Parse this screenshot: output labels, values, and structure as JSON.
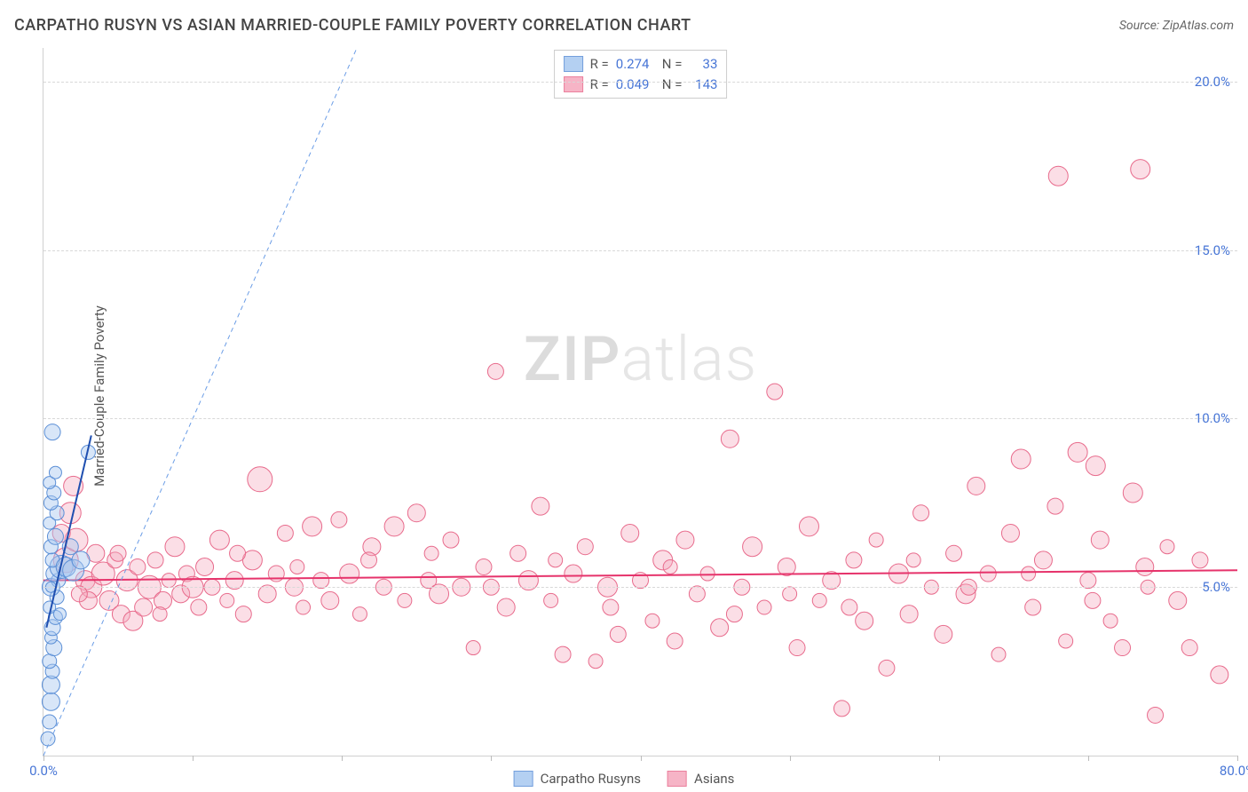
{
  "title": "CARPATHO RUSYN VS ASIAN MARRIED-COUPLE FAMILY POVERTY CORRELATION CHART",
  "source_label": "Source: ",
  "source_value": "ZipAtlas.com",
  "ylabel": "Married-Couple Family Poverty",
  "watermark_bold": "ZIP",
  "watermark_light": "atlas",
  "chart": {
    "type": "scatter",
    "background_color": "#ffffff",
    "grid_color": "#d8d8d8",
    "axis_text_color": "#4876d6",
    "xlim": [
      0,
      80
    ],
    "ylim": [
      0,
      21
    ],
    "xtick_positions": [
      0,
      10,
      20,
      30,
      40,
      50,
      60,
      70,
      80
    ],
    "xtick_labels": {
      "0": "0.0%",
      "80": "80.0%"
    },
    "yticks": [
      5,
      10,
      15,
      20
    ],
    "ytick_labels": [
      "5.0%",
      "10.0%",
      "15.0%",
      "20.0%"
    ],
    "label_fontsize": 15
  },
  "series": [
    {
      "name": "Carpatho Rusyns",
      "fill": "#a8c8f0",
      "stroke": "#5b8fd6",
      "fill_opacity": 0.45,
      "marker_radius_range": [
        6,
        14
      ],
      "trend": {
        "x1": 0.2,
        "y1": 3.8,
        "x2": 3.2,
        "y2": 9.5,
        "color": "#1f4fb0",
        "width": 2,
        "dash": "none"
      },
      "identity_line": {
        "x1": 0,
        "y1": 0,
        "x2": 21,
        "y2": 21,
        "color": "#6b9de6",
        "width": 1,
        "dash": "5,4"
      },
      "R": "0.274",
      "N": "33",
      "points": [
        {
          "x": 0.3,
          "y": 0.5,
          "r": 8
        },
        {
          "x": 0.4,
          "y": 1.0,
          "r": 8
        },
        {
          "x": 0.5,
          "y": 1.6,
          "r": 10
        },
        {
          "x": 0.5,
          "y": 2.1,
          "r": 10
        },
        {
          "x": 0.6,
          "y": 2.5,
          "r": 8
        },
        {
          "x": 0.4,
          "y": 2.8,
          "r": 8
        },
        {
          "x": 0.7,
          "y": 3.2,
          "r": 9
        },
        {
          "x": 0.5,
          "y": 3.5,
          "r": 7
        },
        {
          "x": 0.6,
          "y": 3.8,
          "r": 9
        },
        {
          "x": 0.8,
          "y": 4.1,
          "r": 8
        },
        {
          "x": 0.4,
          "y": 4.4,
          "r": 7
        },
        {
          "x": 0.9,
          "y": 4.7,
          "r": 8
        },
        {
          "x": 0.5,
          "y": 5.0,
          "r": 10
        },
        {
          "x": 1.0,
          "y": 5.2,
          "r": 8
        },
        {
          "x": 0.7,
          "y": 5.4,
          "r": 9
        },
        {
          "x": 1.2,
          "y": 5.6,
          "r": 13
        },
        {
          "x": 0.6,
          "y": 5.8,
          "r": 8
        },
        {
          "x": 1.5,
          "y": 5.6,
          "r": 11
        },
        {
          "x": 2.0,
          "y": 5.5,
          "r": 12
        },
        {
          "x": 2.5,
          "y": 5.8,
          "r": 10
        },
        {
          "x": 0.5,
          "y": 6.2,
          "r": 8
        },
        {
          "x": 0.8,
          "y": 6.5,
          "r": 9
        },
        {
          "x": 0.4,
          "y": 6.9,
          "r": 7
        },
        {
          "x": 0.9,
          "y": 7.2,
          "r": 8
        },
        {
          "x": 0.5,
          "y": 7.5,
          "r": 8
        },
        {
          "x": 0.7,
          "y": 7.8,
          "r": 8
        },
        {
          "x": 0.4,
          "y": 8.1,
          "r": 7
        },
        {
          "x": 0.8,
          "y": 8.4,
          "r": 7
        },
        {
          "x": 3.0,
          "y": 9.0,
          "r": 8
        },
        {
          "x": 0.6,
          "y": 9.6,
          "r": 9
        },
        {
          "x": 0.5,
          "y": 5.0,
          "r": 6
        },
        {
          "x": 1.1,
          "y": 4.2,
          "r": 7
        },
        {
          "x": 1.8,
          "y": 6.2,
          "r": 9
        }
      ]
    },
    {
      "name": "Asians",
      "fill": "#f5a8bd",
      "stroke": "#e86b8c",
      "fill_opacity": 0.38,
      "marker_radius_range": [
        7,
        16
      ],
      "trend": {
        "x1": 0,
        "y1": 5.2,
        "x2": 80,
        "y2": 5.5,
        "color": "#e6336b",
        "width": 2,
        "dash": "none"
      },
      "R": "0.049",
      "N": "143",
      "points": [
        {
          "x": 1.5,
          "y": 5.8,
          "r": 14
        },
        {
          "x": 1.8,
          "y": 7.2,
          "r": 12
        },
        {
          "x": 2.2,
          "y": 6.4,
          "r": 13
        },
        {
          "x": 2.8,
          "y": 5.2,
          "r": 11
        },
        {
          "x": 3.2,
          "y": 5.0,
          "r": 12
        },
        {
          "x": 3.5,
          "y": 6.0,
          "r": 10
        },
        {
          "x": 4.0,
          "y": 5.4,
          "r": 13
        },
        {
          "x": 4.4,
          "y": 4.6,
          "r": 11
        },
        {
          "x": 4.8,
          "y": 5.8,
          "r": 9
        },
        {
          "x": 5.2,
          "y": 4.2,
          "r": 10
        },
        {
          "x": 5.6,
          "y": 5.2,
          "r": 12
        },
        {
          "x": 6.0,
          "y": 4.0,
          "r": 11
        },
        {
          "x": 6.3,
          "y": 5.6,
          "r": 9
        },
        {
          "x": 6.7,
          "y": 4.4,
          "r": 10
        },
        {
          "x": 7.1,
          "y": 5.0,
          "r": 13
        },
        {
          "x": 7.5,
          "y": 5.8,
          "r": 9
        },
        {
          "x": 8.0,
          "y": 4.6,
          "r": 10
        },
        {
          "x": 8.4,
          "y": 5.2,
          "r": 8
        },
        {
          "x": 8.8,
          "y": 6.2,
          "r": 11
        },
        {
          "x": 9.2,
          "y": 4.8,
          "r": 10
        },
        {
          "x": 9.6,
          "y": 5.4,
          "r": 9
        },
        {
          "x": 10.0,
          "y": 5.0,
          "r": 12
        },
        {
          "x": 10.4,
          "y": 4.4,
          "r": 9
        },
        {
          "x": 10.8,
          "y": 5.6,
          "r": 10
        },
        {
          "x": 11.3,
          "y": 5.0,
          "r": 9
        },
        {
          "x": 11.8,
          "y": 6.4,
          "r": 11
        },
        {
          "x": 12.3,
          "y": 4.6,
          "r": 8
        },
        {
          "x": 12.8,
          "y": 5.2,
          "r": 10
        },
        {
          "x": 13.4,
          "y": 4.2,
          "r": 9
        },
        {
          "x": 14.0,
          "y": 5.8,
          "r": 11
        },
        {
          "x": 14.5,
          "y": 8.2,
          "r": 14
        },
        {
          "x": 15.0,
          "y": 4.8,
          "r": 10
        },
        {
          "x": 15.6,
          "y": 5.4,
          "r": 9
        },
        {
          "x": 16.2,
          "y": 6.6,
          "r": 9
        },
        {
          "x": 16.8,
          "y": 5.0,
          "r": 10
        },
        {
          "x": 17.4,
          "y": 4.4,
          "r": 8
        },
        {
          "x": 18.0,
          "y": 6.8,
          "r": 11
        },
        {
          "x": 18.6,
          "y": 5.2,
          "r": 9
        },
        {
          "x": 19.2,
          "y": 4.6,
          "r": 10
        },
        {
          "x": 19.8,
          "y": 7.0,
          "r": 9
        },
        {
          "x": 20.5,
          "y": 5.4,
          "r": 11
        },
        {
          "x": 21.2,
          "y": 4.2,
          "r": 8
        },
        {
          "x": 22.0,
          "y": 6.2,
          "r": 10
        },
        {
          "x": 22.8,
          "y": 5.0,
          "r": 9
        },
        {
          "x": 23.5,
          "y": 6.8,
          "r": 11
        },
        {
          "x": 24.2,
          "y": 4.6,
          "r": 8
        },
        {
          "x": 25.0,
          "y": 7.2,
          "r": 10
        },
        {
          "x": 25.8,
          "y": 5.2,
          "r": 9
        },
        {
          "x": 26.5,
          "y": 4.8,
          "r": 11
        },
        {
          "x": 27.3,
          "y": 6.4,
          "r": 9
        },
        {
          "x": 28.0,
          "y": 5.0,
          "r": 10
        },
        {
          "x": 28.8,
          "y": 3.2,
          "r": 8
        },
        {
          "x": 29.5,
          "y": 5.6,
          "r": 9
        },
        {
          "x": 30.3,
          "y": 11.4,
          "r": 9
        },
        {
          "x": 31.0,
          "y": 4.4,
          "r": 10
        },
        {
          "x": 31.8,
          "y": 6.0,
          "r": 9
        },
        {
          "x": 32.5,
          "y": 5.2,
          "r": 11
        },
        {
          "x": 33.3,
          "y": 7.4,
          "r": 10
        },
        {
          "x": 34.0,
          "y": 4.6,
          "r": 8
        },
        {
          "x": 34.8,
          "y": 3.0,
          "r": 9
        },
        {
          "x": 35.5,
          "y": 5.4,
          "r": 10
        },
        {
          "x": 36.3,
          "y": 6.2,
          "r": 9
        },
        {
          "x": 37.0,
          "y": 2.8,
          "r": 8
        },
        {
          "x": 37.8,
          "y": 5.0,
          "r": 11
        },
        {
          "x": 38.5,
          "y": 3.6,
          "r": 9
        },
        {
          "x": 39.3,
          "y": 6.6,
          "r": 10
        },
        {
          "x": 40.0,
          "y": 5.2,
          "r": 9
        },
        {
          "x": 40.8,
          "y": 4.0,
          "r": 8
        },
        {
          "x": 41.5,
          "y": 5.8,
          "r": 11
        },
        {
          "x": 42.3,
          "y": 3.4,
          "r": 9
        },
        {
          "x": 43.0,
          "y": 6.4,
          "r": 10
        },
        {
          "x": 43.8,
          "y": 4.8,
          "r": 9
        },
        {
          "x": 44.5,
          "y": 5.4,
          "r": 8
        },
        {
          "x": 45.3,
          "y": 3.8,
          "r": 10
        },
        {
          "x": 46.0,
          "y": 9.4,
          "r": 10
        },
        {
          "x": 46.8,
          "y": 5.0,
          "r": 9
        },
        {
          "x": 47.5,
          "y": 6.2,
          "r": 11
        },
        {
          "x": 48.3,
          "y": 4.4,
          "r": 8
        },
        {
          "x": 49.0,
          "y": 10.8,
          "r": 9
        },
        {
          "x": 49.8,
          "y": 5.6,
          "r": 10
        },
        {
          "x": 50.5,
          "y": 3.2,
          "r": 9
        },
        {
          "x": 51.3,
          "y": 6.8,
          "r": 11
        },
        {
          "x": 52.0,
          "y": 4.6,
          "r": 8
        },
        {
          "x": 52.8,
          "y": 5.2,
          "r": 10
        },
        {
          "x": 53.5,
          "y": 1.4,
          "r": 9
        },
        {
          "x": 54.3,
          "y": 5.8,
          "r": 9
        },
        {
          "x": 55.0,
          "y": 4.0,
          "r": 10
        },
        {
          "x": 55.8,
          "y": 6.4,
          "r": 8
        },
        {
          "x": 56.5,
          "y": 2.6,
          "r": 9
        },
        {
          "x": 57.3,
          "y": 5.4,
          "r": 11
        },
        {
          "x": 58.0,
          "y": 4.2,
          "r": 10
        },
        {
          "x": 58.8,
          "y": 7.2,
          "r": 9
        },
        {
          "x": 59.5,
          "y": 5.0,
          "r": 8
        },
        {
          "x": 60.3,
          "y": 3.6,
          "r": 10
        },
        {
          "x": 61.0,
          "y": 6.0,
          "r": 9
        },
        {
          "x": 61.8,
          "y": 4.8,
          "r": 11
        },
        {
          "x": 62.5,
          "y": 8.0,
          "r": 10
        },
        {
          "x": 63.3,
          "y": 5.4,
          "r": 9
        },
        {
          "x": 64.0,
          "y": 3.0,
          "r": 8
        },
        {
          "x": 64.8,
          "y": 6.6,
          "r": 10
        },
        {
          "x": 65.5,
          "y": 8.8,
          "r": 11
        },
        {
          "x": 66.3,
          "y": 4.4,
          "r": 9
        },
        {
          "x": 67.0,
          "y": 5.8,
          "r": 10
        },
        {
          "x": 67.8,
          "y": 7.4,
          "r": 9
        },
        {
          "x": 68.5,
          "y": 3.4,
          "r": 8
        },
        {
          "x": 68.0,
          "y": 17.2,
          "r": 11
        },
        {
          "x": 69.3,
          "y": 9.0,
          "r": 11
        },
        {
          "x": 70.0,
          "y": 5.2,
          "r": 9
        },
        {
          "x": 70.5,
          "y": 8.6,
          "r": 11
        },
        {
          "x": 70.8,
          "y": 6.4,
          "r": 10
        },
        {
          "x": 71.5,
          "y": 4.0,
          "r": 8
        },
        {
          "x": 72.3,
          "y": 3.2,
          "r": 9
        },
        {
          "x": 73.0,
          "y": 7.8,
          "r": 11
        },
        {
          "x": 73.5,
          "y": 17.4,
          "r": 11
        },
        {
          "x": 73.8,
          "y": 5.6,
          "r": 10
        },
        {
          "x": 74.5,
          "y": 1.2,
          "r": 9
        },
        {
          "x": 75.3,
          "y": 6.2,
          "r": 8
        },
        {
          "x": 76.0,
          "y": 4.6,
          "r": 10
        },
        {
          "x": 76.8,
          "y": 3.2,
          "r": 9
        },
        {
          "x": 78.8,
          "y": 2.4,
          "r": 10
        },
        {
          "x": 3.0,
          "y": 4.6,
          "r": 10
        },
        {
          "x": 5.0,
          "y": 6.0,
          "r": 9
        },
        {
          "x": 7.8,
          "y": 4.2,
          "r": 8
        },
        {
          "x": 13.0,
          "y": 6.0,
          "r": 9
        },
        {
          "x": 17.0,
          "y": 5.6,
          "r": 8
        },
        {
          "x": 21.8,
          "y": 5.8,
          "r": 9
        },
        {
          "x": 26.0,
          "y": 6.0,
          "r": 8
        },
        {
          "x": 30.0,
          "y": 5.0,
          "r": 9
        },
        {
          "x": 34.3,
          "y": 5.8,
          "r": 8
        },
        {
          "x": 38.0,
          "y": 4.4,
          "r": 9
        },
        {
          "x": 42.0,
          "y": 5.6,
          "r": 8
        },
        {
          "x": 46.3,
          "y": 4.2,
          "r": 9
        },
        {
          "x": 50.0,
          "y": 4.8,
          "r": 8
        },
        {
          "x": 54.0,
          "y": 4.4,
          "r": 9
        },
        {
          "x": 58.3,
          "y": 5.8,
          "r": 8
        },
        {
          "x": 62.0,
          "y": 5.0,
          "r": 9
        },
        {
          "x": 66.0,
          "y": 5.4,
          "r": 8
        },
        {
          "x": 70.3,
          "y": 4.6,
          "r": 9
        },
        {
          "x": 74.0,
          "y": 5.0,
          "r": 8
        },
        {
          "x": 77.5,
          "y": 5.8,
          "r": 9
        },
        {
          "x": 2.0,
          "y": 8.0,
          "r": 11
        },
        {
          "x": 1.2,
          "y": 6.6,
          "r": 10
        },
        {
          "x": 2.4,
          "y": 4.8,
          "r": 9
        }
      ]
    }
  ],
  "legend": {
    "items": [
      {
        "label": "Carpatho Rusyns",
        "fill": "#a8c8f0",
        "stroke": "#5b8fd6"
      },
      {
        "label": "Asians",
        "fill": "#f5a8bd",
        "stroke": "#e86b8c"
      }
    ]
  },
  "stats_labels": {
    "R": "R =",
    "N": "N ="
  }
}
